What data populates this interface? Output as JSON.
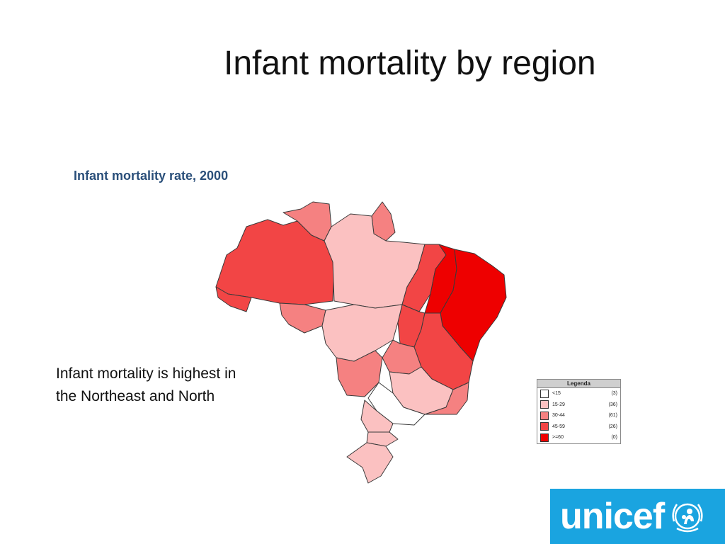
{
  "slide": {
    "title": "Infant mortality by region"
  },
  "map": {
    "title": "Infant mortality rate, 2000",
    "caption_lines": [
      "Infant mortality is highest in",
      "the Northeast and North"
    ],
    "colors": {
      "lt15": "#ffffff",
      "15_29": "#fbc1c1",
      "30_44": "#f58181",
      "45_59": "#f24545",
      "gte60": "#ee0000",
      "border": "#3a3a3a"
    }
  },
  "legend": {
    "title": "Legenda",
    "items": [
      {
        "label": "<15",
        "count": "(3)",
        "color": "#ffffff"
      },
      {
        "label": "15-29",
        "count": "(36)",
        "color": "#fbc1c1"
      },
      {
        "label": "30-44",
        "count": "(61)",
        "color": "#f58181"
      },
      {
        "label": "45-59",
        "count": "(26)",
        "color": "#f24545"
      },
      {
        "label": ">=60",
        "count": "(0)",
        "color": "#ee0000"
      }
    ]
  },
  "logo": {
    "text": "unicef",
    "brand_color": "#1aa4e0"
  }
}
